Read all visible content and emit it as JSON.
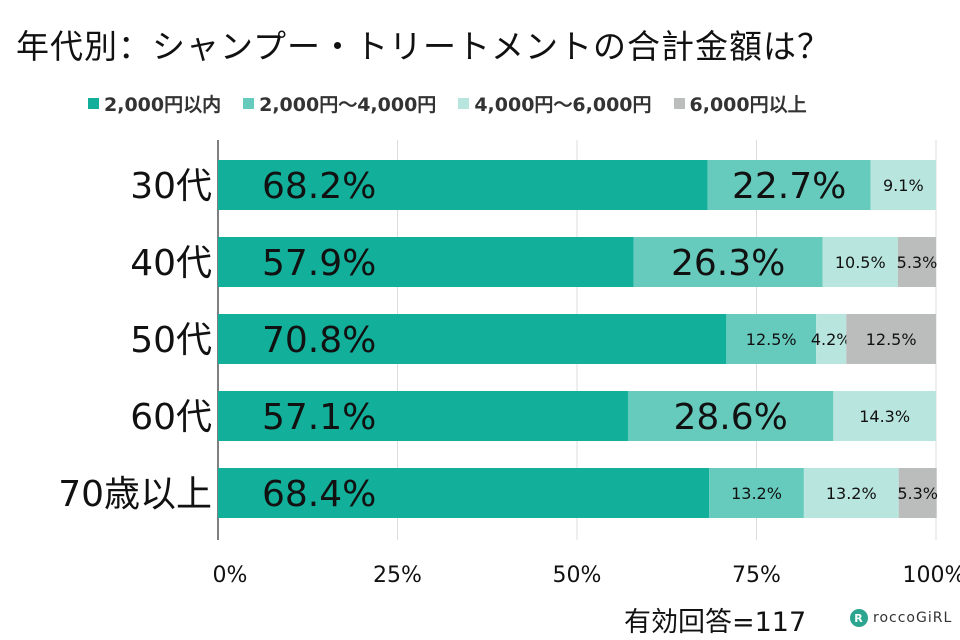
{
  "chart_data": {
    "type": "bar",
    "orientation": "horizontal-stacked-100",
    "title": "年代別：シャンプー・トリートメントの合計金額は？",
    "categories": [
      "30代",
      "40代",
      "50代",
      "60代",
      "70歳以上"
    ],
    "series": [
      {
        "name": "2,000円以内",
        "color": "#12b09a",
        "values": [
          68.2,
          57.9,
          70.8,
          57.1,
          68.4
        ]
      },
      {
        "name": "2,000円～4,000円",
        "color": "#66cbbd",
        "values": [
          22.7,
          26.3,
          12.5,
          28.6,
          13.2
        ]
      },
      {
        "name": "4,000円～6,000円",
        "color": "#b8e5dd",
        "values": [
          9.1,
          10.5,
          4.2,
          14.3,
          13.2
        ]
      },
      {
        "name": "6,000円以上",
        "color": "#bbbdbc",
        "values": [
          0,
          5.3,
          12.5,
          0,
          5.3
        ]
      }
    ],
    "xticks": [
      "0%",
      "25%",
      "50%",
      "75%",
      "100%"
    ],
    "xlim": [
      0,
      100
    ],
    "legend": "top",
    "grid": true,
    "note": "有効回答=117"
  },
  "logo": {
    "text": "roccoGiRL",
    "mark": "R"
  }
}
